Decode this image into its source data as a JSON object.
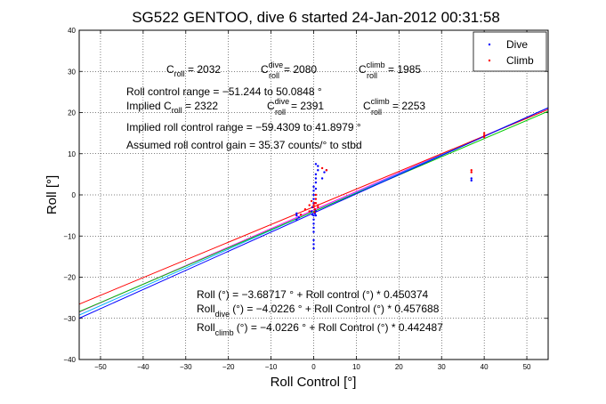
{
  "chart_data": {
    "type": "scatter",
    "title": "SG522 GENTOO, dive 6 started 24-Jan-2012 00:31:58",
    "xlabel": "Roll Control [°]",
    "ylabel": "Roll [°]",
    "xlim": [
      -55,
      55
    ],
    "ylim": [
      -40,
      40
    ],
    "xticks": [
      -50,
      -40,
      -30,
      -20,
      -10,
      0,
      10,
      20,
      30,
      40,
      50
    ],
    "yticks": [
      -40,
      -30,
      -20,
      -10,
      0,
      10,
      20,
      30,
      40
    ],
    "xtick_labels": [
      "−50",
      "−40",
      "−30",
      "−20",
      "−10",
      "0",
      "10",
      "20",
      "30",
      "40",
      "50"
    ],
    "ytick_labels": [
      "−40",
      "−30",
      "−20",
      "−10",
      "0",
      "10",
      "20",
      "30",
      "40"
    ],
    "grid": true,
    "legend_position": "top-right",
    "series": [
      {
        "name": "Dive",
        "color": "#0000ff",
        "points": [
          [
            -4,
            -5
          ],
          [
            -4,
            -6
          ],
          [
            -4,
            -4.5
          ],
          [
            -3.5,
            -5.5
          ],
          [
            -0.5,
            -4
          ],
          [
            -0.3,
            -3
          ],
          [
            0,
            -2
          ],
          [
            0,
            -1
          ],
          [
            0,
            0
          ],
          [
            0,
            1
          ],
          [
            0,
            2
          ],
          [
            0,
            -5
          ],
          [
            0,
            -6
          ],
          [
            0,
            -7
          ],
          [
            0,
            -9
          ],
          [
            0,
            -11
          ],
          [
            0,
            -12
          ],
          [
            0,
            -13
          ],
          [
            0,
            -8
          ],
          [
            0.3,
            -3.5
          ],
          [
            0.3,
            -4.5
          ],
          [
            0.5,
            -5
          ],
          [
            0.5,
            -4
          ],
          [
            -0.3,
            -4.8
          ],
          [
            0.5,
            4
          ],
          [
            0.5,
            5
          ],
          [
            1,
            6
          ],
          [
            1,
            7
          ],
          [
            0.5,
            7.5
          ],
          [
            0.5,
            3
          ],
          [
            0.5,
            1.5
          ],
          [
            2,
            4
          ],
          [
            2.5,
            5.5
          ],
          [
            3,
            6
          ],
          [
            37,
            4
          ],
          [
            37,
            3.5
          ]
        ]
      },
      {
        "name": "Climb",
        "color": "#ff0000",
        "points": [
          [
            -3,
            -4.8
          ],
          [
            -2,
            -3.5
          ],
          [
            -1,
            -4
          ],
          [
            -1,
            -2.5
          ],
          [
            -0.5,
            -1.5
          ],
          [
            0,
            -3
          ],
          [
            0,
            -2.5
          ],
          [
            0.2,
            -2
          ],
          [
            0.3,
            -3.5
          ],
          [
            0.5,
            -2
          ],
          [
            0.5,
            -1
          ],
          [
            0.5,
            0
          ],
          [
            1,
            -2.5
          ],
          [
            1,
            -3
          ],
          [
            0.2,
            -4.2
          ],
          [
            2,
            6.5
          ],
          [
            3,
            6
          ],
          [
            37,
            6
          ],
          [
            37,
            5.5
          ],
          [
            40,
            14
          ],
          [
            40,
            15
          ],
          [
            40,
            14.5
          ]
        ]
      }
    ],
    "fit_lines": [
      {
        "color": "#ff00ff",
        "intercept": -3.68717,
        "slope": 0.450374
      },
      {
        "color": "#00aaff",
        "intercept": -4.0226,
        "slope": 0.457688
      },
      {
        "color": "#00cc00",
        "intercept": -4.0226,
        "slope": 0.442487
      },
      {
        "color": "#ff0000",
        "intercept": -2.9,
        "slope": 0.43
      },
      {
        "color": "#0000ff",
        "intercept": -4.4,
        "slope": 0.465
      }
    ],
    "annotations": {
      "croll": {
        "c": "C",
        "c_sub": "roll",
        "c_val": " = 2032",
        "cd": "C",
        "cd_sup": "dive",
        "cd_sub": "roll",
        "cd_val": " = 2080",
        "cc": "C",
        "cc_sup": "climb",
        "cc_sub": "roll",
        "cc_val": " = 1985"
      },
      "range_line": "Roll control range = −51.244 to 50.0848 °",
      "implied": {
        "prefix": "Implied C",
        "sub": "roll",
        "val": " = 2322",
        "cd": "C",
        "cd_sup": "dive",
        "cd_sub": "roll",
        "cd_val": " = 2391",
        "cc": "C",
        "cc_sup": "climb",
        "cc_sub": "roll",
        "cc_val": " = 2253"
      },
      "implied_range": "Implied roll control range = −59.4309 to 41.8979 °",
      "gain": "Assumed roll control gain = 35.37 counts/° to stbd",
      "eq1": "Roll (°) = −3.68717 ° + Roll control (°) * 0.450374",
      "eq2": {
        "a": "Roll",
        "sub": "dive",
        "b": "(°) = −4.0226 ° + Roll Control (°) * 0.457688"
      },
      "eq3": {
        "a": "Roll",
        "sub": "climb",
        "b": "(°) = −4.0226 ° + Roll Control (°) * 0.442487"
      }
    }
  }
}
